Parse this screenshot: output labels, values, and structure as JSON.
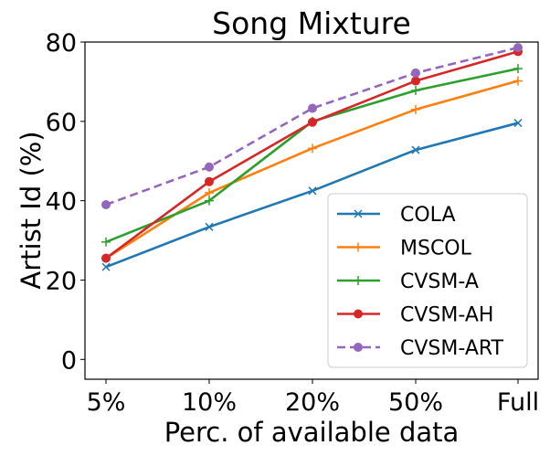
{
  "chart_data": {
    "type": "line",
    "title": "Song Mixture",
    "xlabel": "Perc. of available data",
    "ylabel": "Artist Id (%)",
    "categories": [
      "5%",
      "10%",
      "20%",
      "50%",
      "Full"
    ],
    "ylim": [
      -5,
      80
    ],
    "yticks": [
      0,
      20,
      40,
      60,
      80
    ],
    "legend": "lower-right",
    "series": [
      {
        "name": "COLA",
        "values": [
          23.3,
          33.4,
          42.5,
          52.8,
          59.6
        ],
        "color": "#1f77b4",
        "marker": "x",
        "dashed": false
      },
      {
        "name": "MSCOL",
        "values": [
          25.5,
          42.0,
          53.2,
          63.0,
          70.2
        ],
        "color": "#ff7f0e",
        "marker": "plus",
        "dashed": false
      },
      {
        "name": "CVSM-A",
        "values": [
          29.6,
          40.0,
          60.0,
          67.8,
          73.3
        ],
        "color": "#2ca02c",
        "marker": "plus",
        "dashed": false
      },
      {
        "name": "CVSM-AH",
        "values": [
          25.5,
          44.8,
          59.8,
          70.2,
          77.6
        ],
        "color": "#d62728",
        "marker": "circle",
        "dashed": false
      },
      {
        "name": "CVSM-ART",
        "values": [
          39.0,
          48.5,
          63.3,
          72.2,
          78.6
        ],
        "color": "#9467bd",
        "marker": "circle",
        "dashed": true
      }
    ]
  }
}
